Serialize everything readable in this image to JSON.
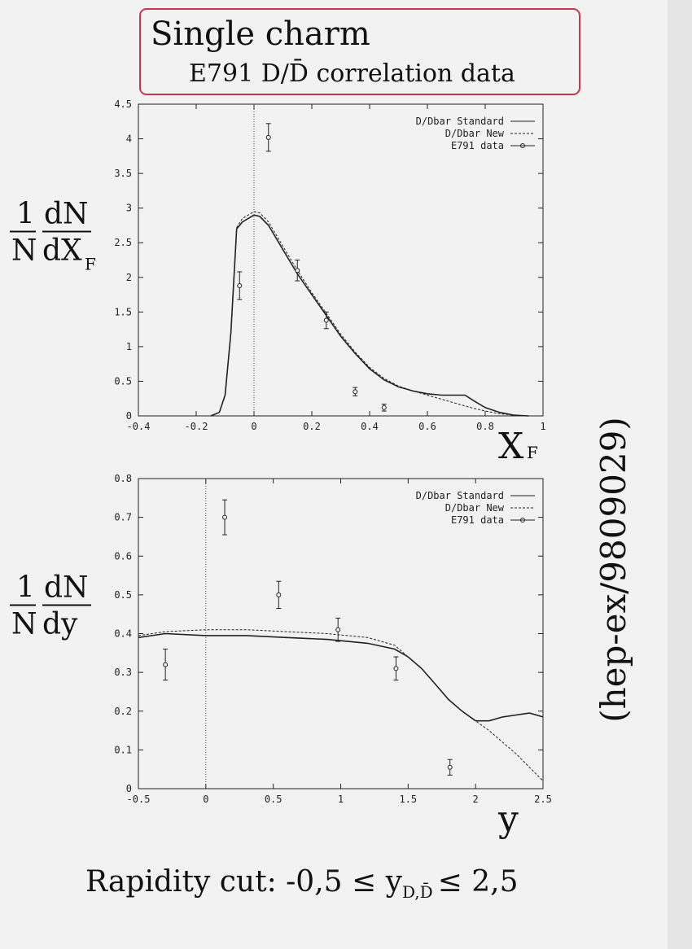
{
  "header": {
    "title": "Single charm",
    "subtitle": "E791 D/D̄ correlation data"
  },
  "side_note": "(hep-ex/9809029)",
  "footer": {
    "text": "Rapidity cut: -0,5 ≤ y",
    "subscript": "D,D̄",
    "tail": "≤ 2,5"
  },
  "chart_data": [
    {
      "type": "line",
      "ylabel": {
        "numerator_left": "1",
        "denominator_left": "N",
        "numerator_right": "dN",
        "denominator_right": "dX",
        "subscript": "F"
      },
      "xlabel": {
        "text": "X",
        "subscript": "F"
      },
      "xlim": [
        -0.4,
        1
      ],
      "xticks": [
        -0.4,
        -0.2,
        0,
        0.2,
        0.4,
        0.6,
        0.8,
        1
      ],
      "ylim": [
        0,
        4.5
      ],
      "yticks": [
        0,
        0.5,
        1,
        1.5,
        2,
        2.5,
        3,
        3.5,
        4,
        4.5
      ],
      "legend": "top-right",
      "series": [
        {
          "name": "D/Dbar Standard",
          "style": "solid",
          "color": "#222222",
          "x": [
            -0.15,
            -0.12,
            -0.1,
            -0.08,
            -0.06,
            -0.04,
            -0.02,
            0,
            0.02,
            0.05,
            0.1,
            0.15,
            0.2,
            0.25,
            0.3,
            0.35,
            0.4,
            0.45,
            0.5,
            0.55,
            0.6,
            0.65,
            0.7,
            0.73,
            0.76,
            0.8,
            0.85,
            0.9,
            0.95
          ],
          "values": [
            0,
            0.05,
            0.3,
            1.2,
            2.7,
            2.8,
            2.85,
            2.9,
            2.88,
            2.75,
            2.4,
            2.05,
            1.75,
            1.45,
            1.15,
            0.9,
            0.68,
            0.52,
            0.42,
            0.36,
            0.32,
            0.3,
            0.3,
            0.3,
            0.22,
            0.12,
            0.05,
            0.01,
            0
          ]
        },
        {
          "name": "D/Dbar New",
          "style": "dashed",
          "color": "#222222",
          "x": [
            -0.15,
            -0.12,
            -0.1,
            -0.08,
            -0.06,
            -0.04,
            -0.02,
            0,
            0.02,
            0.05,
            0.1,
            0.15,
            0.2,
            0.25,
            0.3,
            0.35,
            0.4,
            0.45,
            0.5,
            0.55,
            0.6,
            0.65,
            0.7,
            0.75,
            0.8,
            0.85,
            0.9,
            0.95
          ],
          "values": [
            0,
            0.05,
            0.3,
            1.2,
            2.72,
            2.85,
            2.9,
            2.95,
            2.93,
            2.8,
            2.45,
            2.1,
            1.78,
            1.48,
            1.18,
            0.92,
            0.7,
            0.54,
            0.43,
            0.36,
            0.3,
            0.24,
            0.18,
            0.12,
            0.07,
            0.03,
            0.01,
            0
          ]
        },
        {
          "name": "E791 data",
          "style": "points",
          "color": "#222222",
          "x": [
            -0.05,
            0.05,
            0.15,
            0.25,
            0.35,
            0.45
          ],
          "values": [
            1.88,
            4.02,
            2.1,
            1.38,
            0.35,
            0.12
          ],
          "errors": [
            0.2,
            0.2,
            0.15,
            0.12,
            0.06,
            0.05
          ]
        }
      ]
    },
    {
      "type": "line",
      "ylabel": {
        "numerator_left": "1",
        "denominator_left": "N",
        "numerator_right": "dN",
        "denominator_right": "dy"
      },
      "xlabel": {
        "text": "y"
      },
      "xlim": [
        -0.5,
        2.5
      ],
      "xticks": [
        -0.5,
        0,
        0.5,
        1,
        1.5,
        2,
        2.5
      ],
      "ylim": [
        0,
        0.8
      ],
      "yticks": [
        0,
        0.1,
        0.2,
        0.3,
        0.4,
        0.5,
        0.6,
        0.7,
        0.8
      ],
      "legend": "top-right",
      "series": [
        {
          "name": "D/Dbar Standard",
          "style": "solid",
          "color": "#222222",
          "x": [
            -0.5,
            -0.3,
            0,
            0.3,
            0.6,
            0.9,
            1.2,
            1.4,
            1.5,
            1.6,
            1.7,
            1.8,
            1.9,
            2.0,
            2.1,
            2.2,
            2.3,
            2.4,
            2.5
          ],
          "values": [
            0.39,
            0.4,
            0.395,
            0.395,
            0.39,
            0.385,
            0.375,
            0.36,
            0.34,
            0.31,
            0.27,
            0.23,
            0.2,
            0.175,
            0.175,
            0.185,
            0.19,
            0.195,
            0.185
          ]
        },
        {
          "name": "D/Dbar New",
          "style": "dashed",
          "color": "#222222",
          "x": [
            -0.5,
            -0.3,
            0,
            0.3,
            0.6,
            0.9,
            1.2,
            1.4,
            1.5,
            1.6,
            1.7,
            1.8,
            1.9,
            2.0,
            2.1,
            2.2,
            2.3,
            2.4,
            2.5
          ],
          "values": [
            0.395,
            0.405,
            0.41,
            0.41,
            0.405,
            0.4,
            0.39,
            0.37,
            0.34,
            0.31,
            0.27,
            0.23,
            0.2,
            0.175,
            0.15,
            0.12,
            0.09,
            0.055,
            0.02
          ]
        },
        {
          "name": "E791 data",
          "style": "points",
          "color": "#222222",
          "x": [
            -0.3,
            0.14,
            0.54,
            0.98,
            1.41,
            1.81
          ],
          "values": [
            0.32,
            0.7,
            0.5,
            0.41,
            0.31,
            0.055
          ],
          "errors": [
            0.04,
            0.045,
            0.035,
            0.03,
            0.03,
            0.02
          ]
        }
      ]
    }
  ]
}
